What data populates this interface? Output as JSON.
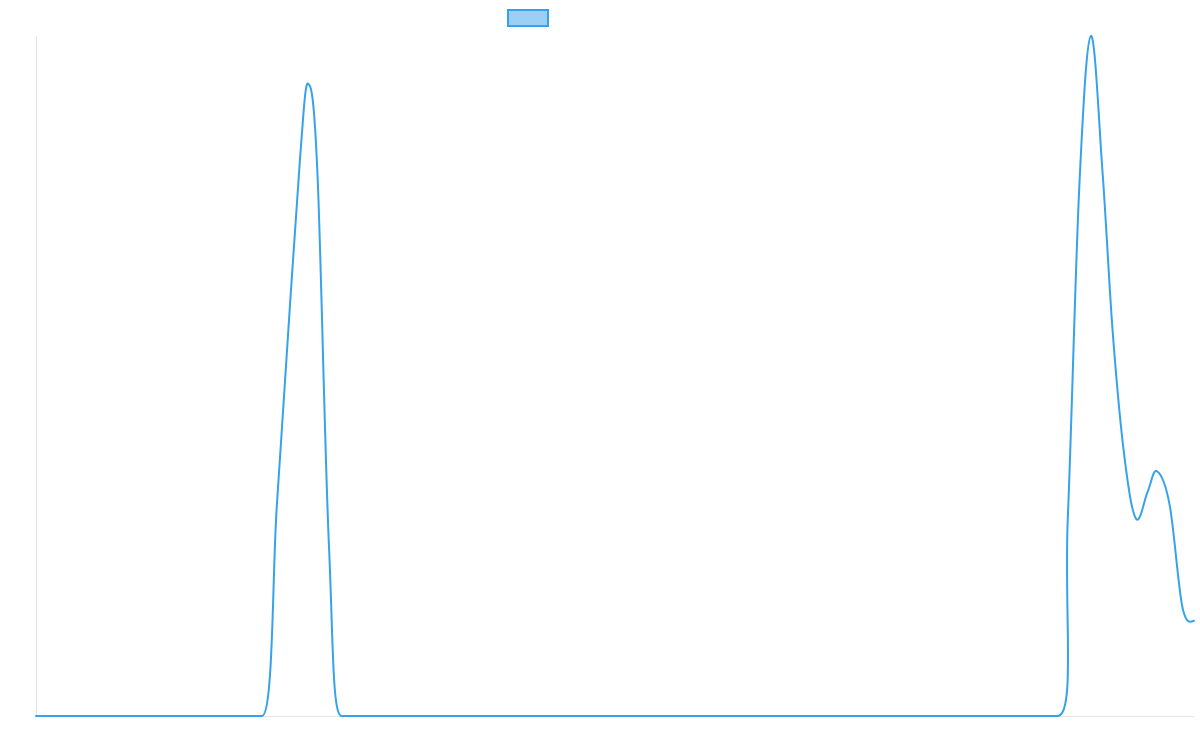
{
  "chart_data": {
    "type": "line",
    "title": "",
    "xlabel": "",
    "ylabel": "",
    "legend": {
      "placement": "top-center",
      "entries": [
        {
          "name": "",
          "color": "#36a2eb",
          "fill": "#9ad0f5"
        }
      ]
    },
    "grid": false,
    "xlim": [
      0,
      100
    ],
    "ylim": [
      0,
      100
    ],
    "series": [
      {
        "name": "",
        "color": "#36a2eb",
        "smooth": true,
        "x": [
          0,
          5,
          10,
          15,
          19.5,
          20.8,
          21.8,
          22.8,
          23.5,
          24.3,
          25.3,
          26.4,
          30,
          40,
          50,
          60,
          70,
          80,
          88.2,
          89.1,
          90.1,
          91.1,
          92.1,
          93.0,
          94.0,
          95.0,
          96.0,
          96.8,
          97.9,
          99.0,
          100
        ],
        "y": [
          0,
          0,
          0,
          0,
          0,
          31,
          57,
          82,
          93,
          80,
          25,
          0,
          0,
          0,
          0,
          0,
          0,
          0,
          0,
          29,
          78,
          100,
          80,
          56,
          38,
          29,
          33,
          36,
          31,
          16,
          14
        ]
      }
    ]
  }
}
